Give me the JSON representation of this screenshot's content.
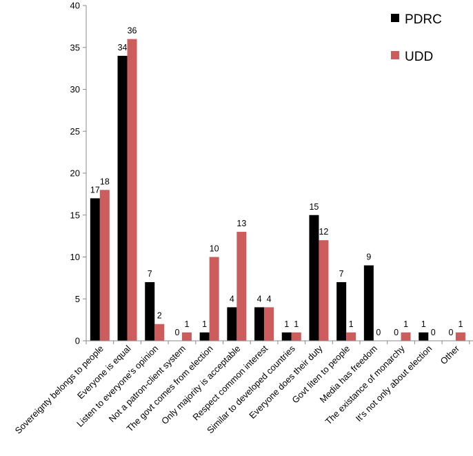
{
  "chart_data": {
    "type": "bar",
    "categories": [
      "Sovereignty belongs to people",
      "Everyone is equal",
      "Listen to everyone's opinion",
      "Not a patron-client system",
      "The govt comes from election",
      "Only majority is acceptable",
      "Respect common interest",
      "Similar to developed countries",
      "Everyone does their duty",
      "Govt liten to people",
      "Media has freedom",
      "The existance of monarchy",
      "It's not only about election",
      "Other"
    ],
    "series": [
      {
        "name": "PDRC",
        "color": "#000000",
        "values": [
          17,
          34,
          7,
          0,
          1,
          4,
          4,
          1,
          15,
          7,
          9,
          0,
          1,
          0
        ]
      },
      {
        "name": "UDD",
        "color": "#cd5c5c",
        "values": [
          18,
          36,
          2,
          1,
          10,
          13,
          4,
          1,
          12,
          1,
          0,
          1,
          0,
          1
        ]
      }
    ],
    "yticks": [
      "0",
      "5",
      "10",
      "15",
      "20",
      "25",
      "30",
      "35",
      "40"
    ],
    "ylim": [
      0,
      40
    ],
    "grid": false,
    "legend_position": "top-right"
  }
}
